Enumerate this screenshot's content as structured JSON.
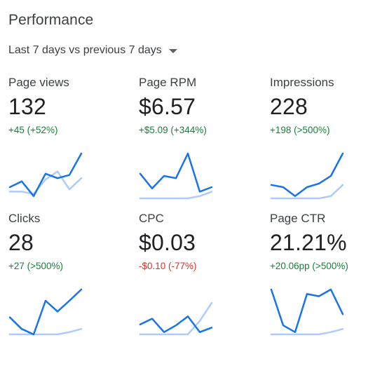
{
  "title": "Performance",
  "date_range": {
    "label": "Last 7 days vs previous 7 days",
    "icon": "caret-down-icon"
  },
  "colors": {
    "current_series": "#1a73e8",
    "previous_series": "#aecbfa",
    "positive": "#188038",
    "negative": "#d93025"
  },
  "metrics": [
    {
      "label": "Page views",
      "value": "132",
      "delta": "+45 (+52%)",
      "direction": "up",
      "current": [
        0.25,
        0.38,
        0.05,
        0.55,
        0.45,
        0.52,
        1.0
      ],
      "previous": [
        0.15,
        0.15,
        0.1,
        0.42,
        0.6,
        0.2,
        0.45
      ]
    },
    {
      "label": "Page RPM",
      "value": "$6.57",
      "delta": "+$5.09 (+344%)",
      "direction": "up",
      "current": [
        0.55,
        0.22,
        0.5,
        0.45,
        1.0,
        0.15,
        0.25
      ],
      "previous": [
        0.0,
        0.0,
        0.0,
        0.0,
        0.0,
        0.05,
        0.15
      ]
    },
    {
      "label": "Impressions",
      "value": "228",
      "delta": "+198 (>500%)",
      "direction": "up",
      "current": [
        0.3,
        0.25,
        0.05,
        0.25,
        0.33,
        0.5,
        1.0
      ],
      "previous": [
        0.0,
        0.0,
        0.0,
        0.0,
        0.0,
        0.05,
        0.3
      ]
    },
    {
      "label": "Clicks",
      "value": "28",
      "delta": "+27 (>500%)",
      "direction": "up",
      "current": [
        0.38,
        0.12,
        0.0,
        0.75,
        0.51,
        0.75,
        1.0
      ],
      "previous": [
        0.0,
        0.0,
        0.0,
        0.0,
        0.0,
        0.05,
        0.12
      ]
    },
    {
      "label": "CPC",
      "value": "$0.03",
      "delta": "-$0.10 (-77%)",
      "direction": "down",
      "current": [
        0.22,
        0.35,
        0.05,
        0.2,
        0.4,
        0.05,
        0.15
      ],
      "previous": [
        0.0,
        0.0,
        0.0,
        0.0,
        0.0,
        0.3,
        0.7
      ]
    },
    {
      "label": "Page CTR",
      "value": "21.21%",
      "delta": "+20.06pp (>500%)",
      "direction": "up",
      "current": [
        1.0,
        0.2,
        0.05,
        0.9,
        0.85,
        1.0,
        0.45
      ],
      "previous": [
        0.0,
        0.0,
        0.0,
        0.0,
        0.0,
        0.05,
        0.12
      ]
    }
  ]
}
